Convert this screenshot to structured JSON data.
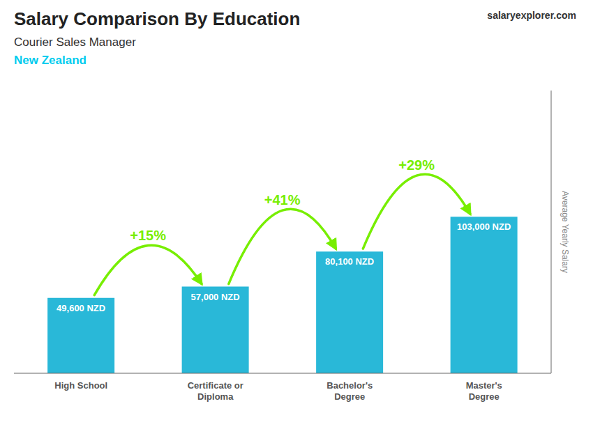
{
  "chart_data": {
    "type": "bar",
    "title": "Salary Comparison By Education",
    "subtitle": "Courier Sales Manager",
    "ylabel": "Average Yearly Salary",
    "categories": [
      "High School",
      "Certificate or\nDiploma",
      "Bachelor's\nDegree",
      "Master's\nDegree"
    ],
    "values": [
      49600,
      57000,
      80100,
      103000
    ],
    "value_labels": [
      "49,600 NZD",
      "57,000 NZD",
      "80,100 NZD",
      "103,000 NZD"
    ],
    "data_labels": true,
    "color": "#29b8d8",
    "ylim": [
      0,
      186000
    ],
    "tick_labels": "x",
    "grid": false,
    "annotations": [
      {
        "text": "New Zealand",
        "color": "#00ccee"
      },
      {
        "text": "salaryexplorer.com"
      },
      {
        "text": "+15%",
        "color": "#77ee00",
        "from": "High School",
        "to": "Certificate or\nDiploma"
      },
      {
        "text": "+41%",
        "color": "#77ee00",
        "from": "Certificate or\nDiploma",
        "to": "Bachelor's\nDegree"
      },
      {
        "text": "+29%",
        "color": "#77ee00",
        "from": "Bachelor's\nDegree",
        "to": "Master's\nDegree"
      }
    ]
  }
}
